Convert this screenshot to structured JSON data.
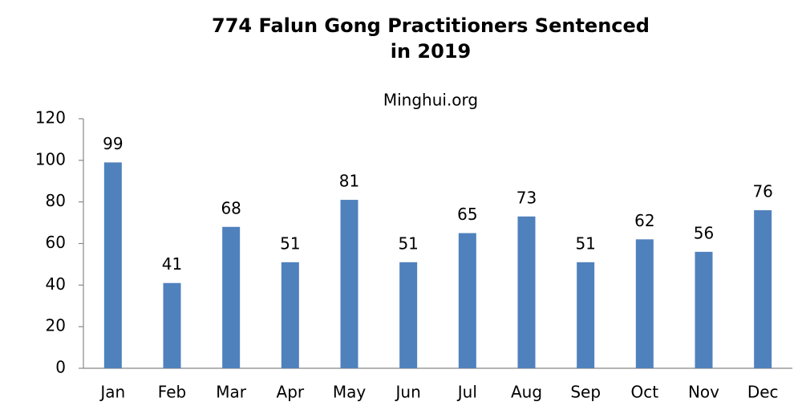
{
  "chart_data": {
    "type": "bar",
    "title": [
      "774 Falun Gong Practitioners Sentenced",
      "in 2019"
    ],
    "subtitle": "Minghui.org",
    "categories": [
      "Jan",
      "Feb",
      "Mar",
      "Apr",
      "May",
      "Jun",
      "Jul",
      "Aug",
      "Sep",
      "Oct",
      "Nov",
      "Dec"
    ],
    "values": [
      99,
      41,
      68,
      51,
      81,
      51,
      65,
      73,
      51,
      62,
      56,
      76
    ],
    "color": "#4f81bd",
    "ylim": [
      0,
      120
    ],
    "yticks": [
      0,
      20,
      40,
      60,
      80,
      100,
      120
    ],
    "grid": false,
    "data_labels": true
  }
}
